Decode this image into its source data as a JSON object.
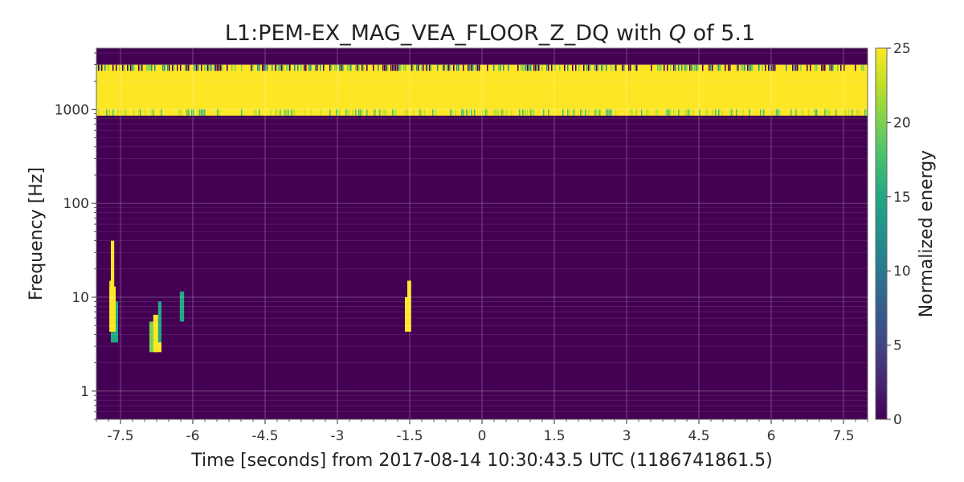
{
  "chart_data": {
    "type": "heatmap",
    "title_prefix": "L1:PEM-EX_MAG_VEA_FLOOR_Z_DQ with",
    "title_q": "Q",
    "title_suffix": "of 5.1",
    "xlabel": "Time [seconds] from 2017-08-14 10:30:43.5 UTC (1186741861.5)",
    "ylabel": "Frequency [Hz]",
    "xlim": [
      -8,
      8
    ],
    "ylim": [
      0.5,
      4500
    ],
    "yscale": "log",
    "xticks": [
      -7.5,
      -6,
      -4.5,
      -3,
      -1.5,
      0,
      1.5,
      3,
      4.5,
      6,
      7.5
    ],
    "xtick_labels": [
      "-7.5",
      "-6",
      "-4.5",
      "-3",
      "-1.5",
      "0",
      "1.5",
      "3",
      "4.5",
      "6",
      "7.5"
    ],
    "yticks": [
      1,
      10,
      100,
      1000
    ],
    "ytick_labels": [
      "1",
      "10",
      "100",
      "1000"
    ],
    "grid": true,
    "background_energy": 0,
    "colorbar": {
      "label": "Normalized energy",
      "range": [
        0,
        25
      ],
      "ticks": [
        0,
        5,
        10,
        15,
        20,
        25
      ],
      "tick_labels": [
        "0",
        "5",
        "10",
        "15",
        "20",
        "25"
      ],
      "colormap": "viridis"
    },
    "band": {
      "x": [
        -8,
        8
      ],
      "f": [
        860,
        3000
      ],
      "energy": 25
    },
    "blobs": [
      {
        "x": [
          -7.73,
          -7.65
        ],
        "f": [
          4.3,
          15
        ],
        "energy": 24
      },
      {
        "x": [
          -7.7,
          -7.6
        ],
        "f": [
          3.3,
          9
        ],
        "energy": 15
      },
      {
        "x": [
          -7.65,
          -7.55
        ],
        "f": [
          3.3,
          9
        ],
        "energy": 15
      },
      {
        "x": [
          -7.73,
          -7.6
        ],
        "f": [
          4.3,
          13
        ],
        "energy": 25
      },
      {
        "x": [
          -7.7,
          -7.63
        ],
        "f": [
          10,
          40
        ],
        "energy": 25
      },
      {
        "x": [
          -6.9,
          -6.8
        ],
        "f": [
          2.6,
          5.5
        ],
        "energy": 20
      },
      {
        "x": [
          -6.82,
          -6.72
        ],
        "f": [
          2.6,
          6.5
        ],
        "energy": 24
      },
      {
        "x": [
          -6.78,
          -6.65
        ],
        "f": [
          2.6,
          5.5
        ],
        "energy": 25
      },
      {
        "x": [
          -6.72,
          -6.65
        ],
        "f": [
          3.3,
          9
        ],
        "energy": 14
      },
      {
        "x": [
          -6.27,
          -6.18
        ],
        "f": [
          5.5,
          11.5
        ],
        "energy": 15
      },
      {
        "x": [
          -1.6,
          -1.5
        ],
        "f": [
          4.3,
          10
        ],
        "energy": 24
      },
      {
        "x": [
          -1.55,
          -1.47
        ],
        "f": [
          4.3,
          15
        ],
        "energy": 25
      }
    ]
  }
}
